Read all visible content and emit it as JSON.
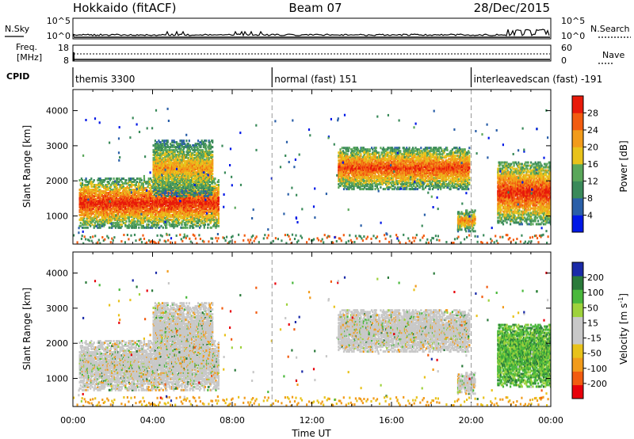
{
  "header": {
    "left_title": "Hokkaido (fitACF)",
    "center_title": "Beam 07",
    "right_title": "28/Dec/2015"
  },
  "strips": {
    "nsky_label": "N.Sky",
    "freq_label_line1": "Freq.",
    "freq_label_line2": "[MHz]",
    "cpid_label": "CPID",
    "nsearch_label": "N.Search",
    "nave_label": "Nave",
    "nsky_ticks": [
      "10^5",
      "10^0"
    ],
    "nsearch_ticks": [
      "10^5",
      "10^0"
    ],
    "freq_ticks": [
      "18",
      "8"
    ],
    "nave_ticks": [
      "60",
      "0"
    ]
  },
  "cpid_segments": [
    {
      "label": "themis 3300",
      "start_hour": 0
    },
    {
      "label": "normal (fast) 151",
      "start_hour": 10
    },
    {
      "label": "interleavedscan (fast) -191",
      "start_hour": 20
    }
  ],
  "colors": {
    "power_scale": [
      "#0018e6",
      "#2a5fa8",
      "#3a8a5a",
      "#5aa75a",
      "#e8c21a",
      "#f29b1a",
      "#f25c10",
      "#e81a0a"
    ],
    "velocity_scale": [
      "#e8000a",
      "#f25c10",
      "#f29b1a",
      "#e8c21a",
      "#c8c8c8",
      "#c8c8c8",
      "#9ed23c",
      "#4ab83c",
      "#2a7a3a",
      "#1a2aa8"
    ],
    "ground_scatter": "#c8c8c8"
  },
  "chart_data": [
    {
      "type": "heatmap",
      "name": "power",
      "ylabel": "Slant Range [km]",
      "xlabel": "",
      "xlim_hours": [
        0,
        24
      ],
      "ylim_km": [
        200,
        4600
      ],
      "y_ticks": [
        1000,
        2000,
        3000,
        4000
      ],
      "colorbar": {
        "label": "Power [dB]",
        "range": [
          0,
          32
        ],
        "ticks": [
          4,
          8,
          12,
          16,
          20,
          24,
          28
        ]
      },
      "echo_regions": [
        {
          "t_start": 0.3,
          "t_end": 7.3,
          "r_low": 700,
          "r_high": 2100,
          "peak_db": 30
        },
        {
          "t_start": 4.0,
          "t_end": 7.0,
          "r_low": 1600,
          "r_high": 3200,
          "peak_db": 22
        },
        {
          "t_start": 13.3,
          "t_end": 19.9,
          "r_low": 1800,
          "r_high": 3000,
          "peak_db": 28
        },
        {
          "t_start": 19.3,
          "t_end": 20.2,
          "r_low": 600,
          "r_high": 1200,
          "peak_db": 24
        },
        {
          "t_start": 21.3,
          "t_end": 24.0,
          "r_low": 800,
          "r_high": 2600,
          "peak_db": 30
        }
      ]
    },
    {
      "type": "heatmap",
      "name": "velocity",
      "ylabel": "Slant Range [km]",
      "xlabel": "Time UT",
      "xlim_hours": [
        0,
        24
      ],
      "ylim_km": [
        200,
        4600
      ],
      "y_ticks": [
        1000,
        2000,
        3000,
        4000
      ],
      "x_ticks": [
        "00:00",
        "04:00",
        "08:00",
        "12:00",
        "16:00",
        "20:00",
        "00:00"
      ],
      "colorbar": {
        "label": "Velocity [m s-1]",
        "ticks": [
          -200,
          -100,
          -50,
          -15,
          15,
          50,
          100,
          200
        ]
      },
      "echo_regions": [
        {
          "t_start": 0.3,
          "t_end": 7.3,
          "r_low": 700,
          "r_high": 2100,
          "dominant": "ground scatter"
        },
        {
          "t_start": 13.3,
          "t_end": 19.9,
          "r_low": 1800,
          "r_high": 3000,
          "dominant": "ground scatter"
        },
        {
          "t_start": 21.3,
          "t_end": 24.0,
          "r_low": 800,
          "r_high": 2600,
          "dominant": "positive 15-100"
        }
      ]
    }
  ]
}
